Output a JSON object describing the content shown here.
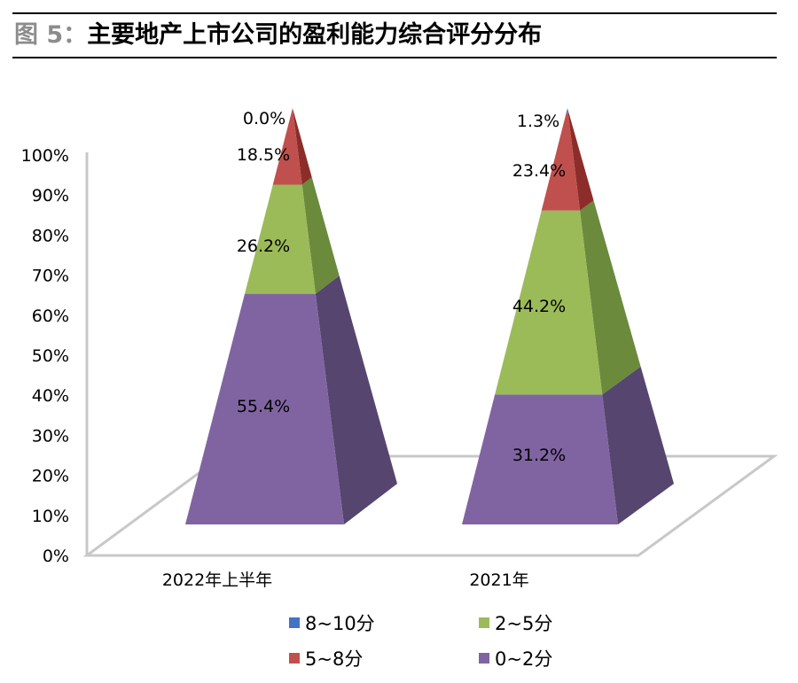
{
  "figure": {
    "label": "图 5：",
    "title": "主要地产上市公司的盈利能力综合评分分布"
  },
  "colors": {
    "s8_10": "#4472c4",
    "s5_8": "#c0504d",
    "s2_5": "#9bbb59",
    "s0_2": "#8064a2",
    "s5_8_side": "#8c2d2a",
    "s2_5_side": "#6b8a3c",
    "s0_2_side": "#56456f",
    "floor": "#c8c8c8"
  },
  "chart_data": {
    "type": "bar",
    "style": "3d-pyramid-100-percent-stacked",
    "categories": [
      "2022年上半年",
      "2021年"
    ],
    "series": [
      {
        "name": "0~2分",
        "values": [
          55.4,
          31.2
        ],
        "labels": [
          "55.4%",
          "31.2%"
        ]
      },
      {
        "name": "2~5分",
        "values": [
          26.2,
          44.2
        ],
        "labels": [
          "26.2%",
          "44.2%"
        ]
      },
      {
        "name": "5~8分",
        "values": [
          18.5,
          23.4
        ],
        "labels": [
          "18.5%",
          "23.4%"
        ]
      },
      {
        "name": "8~10分",
        "values": [
          0.0,
          1.3
        ],
        "labels": [
          "0.0%",
          "1.3%"
        ]
      }
    ],
    "y_ticks": [
      "0%",
      "10%",
      "20%",
      "30%",
      "40%",
      "50%",
      "60%",
      "70%",
      "80%",
      "90%",
      "100%"
    ],
    "ylim": [
      0,
      100
    ],
    "legend": {
      "placement": "bottom",
      "order": [
        "8~10分",
        "2~5分",
        "5~8分",
        "0~2分"
      ]
    }
  }
}
